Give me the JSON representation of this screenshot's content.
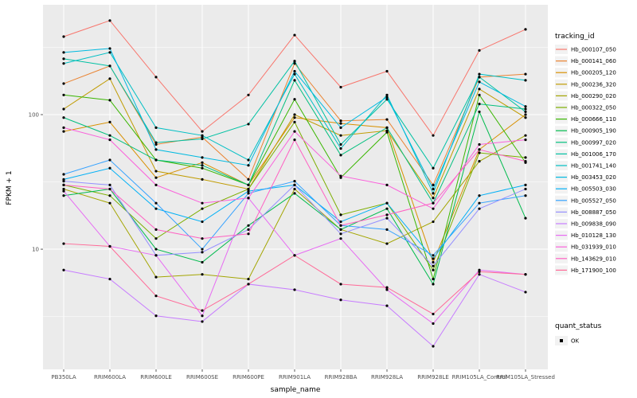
{
  "chart_data": {
    "type": "line",
    "x_type": "categorical",
    "xlabel": "sample_name",
    "ylabel": "FPKM + 1",
    "yscale": "log10",
    "ylim": [
      1.28,
      655
    ],
    "yticks": [
      10,
      100
    ],
    "grid": true,
    "panel_bg": "#EBEBEB",
    "grid_color": "#FFFFFF",
    "point_color": "#000000",
    "legend": {
      "position": "right",
      "tracking_title": "tracking_id",
      "quant_title": "quant_status",
      "quant_entries": [
        {
          "label": "OK",
          "shape": "point",
          "color": "#000000"
        }
      ]
    },
    "categories": [
      "PB350LA",
      "RRIM600LA",
      "RRIM600LE",
      "RRIM600SE",
      "RRIM600PE",
      "RRIM901LA",
      "RRIM928BA",
      "RRIM928LA",
      "RRIM928LE",
      "RRIM105LA_Control",
      "RRIM105LA_Stressed"
    ],
    "series": [
      {
        "name": "Hb_000107_050",
        "color": "#F8766D",
        "values": [
          380,
          500,
          190,
          75,
          140,
          390,
          160,
          210,
          70,
          300,
          430
        ]
      },
      {
        "name": "Hb_000141_060",
        "color": "#EA8331",
        "values": [
          170,
          230,
          60,
          68,
          33,
          240,
          90,
          92,
          30,
          190,
          200
        ]
      },
      {
        "name": "Hb_000205_120",
        "color": "#D89000",
        "values": [
          75,
          88,
          34,
          44,
          30,
          95,
          86,
          80,
          8,
          55,
          100
        ]
      },
      {
        "name": "Hb_000236_320",
        "color": "#C09B00",
        "values": [
          110,
          185,
          38,
          33,
          28,
          100,
          70,
          76,
          24,
          155,
          95
        ]
      },
      {
        "name": "Hb_000290_020",
        "color": "#A3A500",
        "values": [
          28,
          22,
          6.2,
          6.5,
          6,
          28,
          14,
          11,
          16,
          45,
          70
        ]
      },
      {
        "name": "Hb_000322_050",
        "color": "#7CAE00",
        "values": [
          30,
          25,
          12,
          20,
          28,
          88,
          18,
          22,
          7,
          52,
          48
        ]
      },
      {
        "name": "Hb_000666_110",
        "color": "#39B600",
        "values": [
          140,
          128,
          46,
          40,
          30,
          130,
          34,
          74,
          6,
          140,
          44
        ]
      },
      {
        "name": "Hb_000905_190",
        "color": "#00BB4E",
        "values": [
          25,
          28,
          10,
          8,
          15,
          26,
          14,
          20,
          5.5,
          105,
          17
        ]
      },
      {
        "name": "Hb_000997_020",
        "color": "#00BF7D",
        "values": [
          95,
          70,
          46,
          42,
          30,
          180,
          50,
          80,
          22,
          120,
          110
        ]
      },
      {
        "name": "Hb_001006_170",
        "color": "#00C1A3",
        "values": [
          260,
          230,
          62,
          66,
          85,
          250,
          60,
          130,
          40,
          190,
          105
        ]
      },
      {
        "name": "Hb_001741_140",
        "color": "#00BFC4",
        "values": [
          240,
          290,
          80,
          70,
          46,
          200,
          56,
          140,
          26,
          200,
          180
        ]
      },
      {
        "name": "Hb_003453_020",
        "color": "#00BAE0",
        "values": [
          290,
          310,
          55,
          48,
          42,
          210,
          80,
          135,
          28,
          175,
          115
        ]
      },
      {
        "name": "Hb_005503_030",
        "color": "#00B0F6",
        "values": [
          33,
          40,
          20,
          16,
          27,
          30,
          16,
          22,
          8.5,
          25,
          30
        ]
      },
      {
        "name": "Hb_005527_050",
        "color": "#35A2FF",
        "values": [
          36,
          46,
          22,
          10,
          26,
          32,
          15,
          14,
          9,
          22,
          25
        ]
      },
      {
        "name": "Hb_008887_050",
        "color": "#9590FF",
        "values": [
          32,
          30,
          9,
          9.5,
          14,
          30,
          13,
          17,
          7.5,
          20,
          28
        ]
      },
      {
        "name": "Hb_009838_090",
        "color": "#C77CFF",
        "values": [
          7,
          6,
          3.2,
          2.9,
          5.5,
          5,
          4.2,
          3.8,
          1.9,
          6.5,
          4.8
        ]
      },
      {
        "name": "Hb_010128_130",
        "color": "#E76BF3",
        "values": [
          27,
          10.5,
          9,
          3.2,
          24,
          9,
          12,
          5,
          2.8,
          7,
          6.5
        ]
      },
      {
        "name": "Hb_031939_010",
        "color": "#FA62DB",
        "values": [
          80,
          65,
          30,
          22,
          24,
          75,
          35,
          30,
          20,
          60,
          65
        ]
      },
      {
        "name": "Hb_143629_010",
        "color": "#FF61C3",
        "values": [
          30,
          28,
          14,
          12,
          13,
          65,
          15,
          18,
          22,
          55,
          45
        ]
      },
      {
        "name": "Hb_171900_100",
        "color": "#FF6A98",
        "values": [
          11,
          10.5,
          4.5,
          3.5,
          5.5,
          9,
          5.5,
          5.2,
          3.3,
          6.8,
          6.5
        ]
      }
    ]
  }
}
